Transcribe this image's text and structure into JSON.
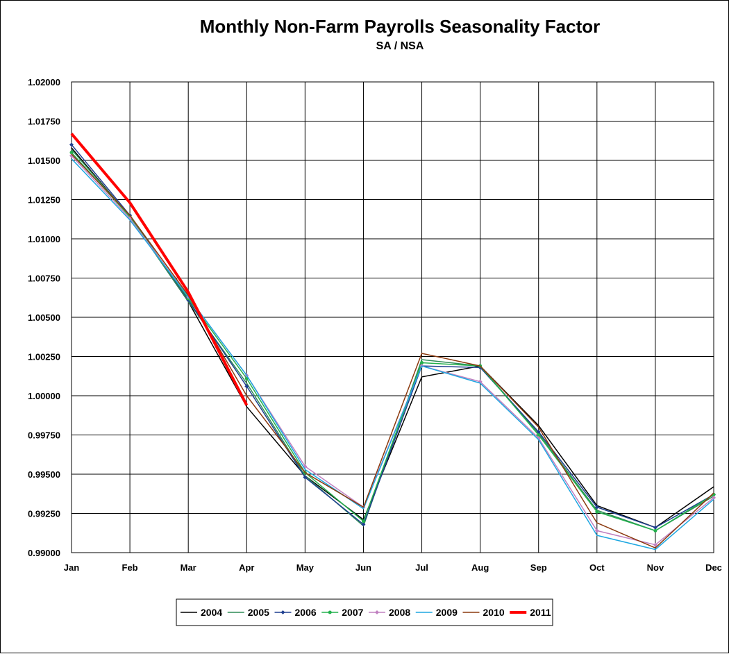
{
  "chart_data": {
    "type": "line",
    "title": "Monthly Non-Farm Payrolls Seasonality Factor",
    "subtitle": "SA / NSA",
    "categories": [
      "Jan",
      "Feb",
      "Mar",
      "Apr",
      "May",
      "Jun",
      "Jul",
      "Aug",
      "Sep",
      "Oct",
      "Nov",
      "Dec"
    ],
    "ylim": [
      0.99,
      1.02
    ],
    "yticks": [
      "1.02000",
      "1.01750",
      "1.01500",
      "1.01250",
      "1.01000",
      "1.00750",
      "1.00500",
      "1.00250",
      "1.00000",
      "0.99750",
      "0.99500",
      "0.99250",
      "0.99000"
    ],
    "grid": true,
    "legend_position": "bottom",
    "series": [
      {
        "name": "2004",
        "color": "#000000",
        "marker": "none",
        "width": 1.5,
        "values": [
          1.0158,
          1.0114,
          1.006,
          0.9993,
          0.9949,
          0.9921,
          1.0012,
          1.0019,
          0.9981,
          0.993,
          0.9916,
          0.9942
        ]
      },
      {
        "name": "2005",
        "color": "#2e8b57",
        "marker": "none",
        "width": 1.5,
        "values": [
          1.0157,
          1.0114,
          1.006,
          1.0008,
          0.9949,
          0.9917,
          1.0023,
          1.0019,
          0.9976,
          0.9927,
          0.9914,
          0.9936
        ]
      },
      {
        "name": "2006",
        "color": "#1f3f8f",
        "marker": "diamond",
        "width": 1.5,
        "values": [
          1.016,
          1.0115,
          1.0061,
          1.0006,
          0.9948,
          0.9918,
          1.0019,
          1.0018,
          0.9977,
          0.9929,
          0.9916,
          0.9937
        ]
      },
      {
        "name": "2007",
        "color": "#22b14c",
        "marker": "dot",
        "width": 1.5,
        "values": [
          1.0155,
          1.0114,
          1.0062,
          1.0011,
          0.9951,
          0.992,
          1.0021,
          1.0019,
          0.9975,
          0.9926,
          0.9914,
          0.9937
        ]
      },
      {
        "name": "2008",
        "color": "#c080c0",
        "marker": "diamond",
        "width": 1.5,
        "values": [
          1.0153,
          1.0113,
          1.0063,
          1.0013,
          0.9955,
          0.9929,
          1.0019,
          1.0009,
          0.9973,
          0.9914,
          0.9905,
          0.9935
        ]
      },
      {
        "name": "2009",
        "color": "#1ea7e1",
        "marker": "none",
        "width": 1.5,
        "values": [
          1.0151,
          1.0112,
          1.0063,
          1.0013,
          0.9953,
          0.9928,
          1.0019,
          1.0008,
          0.9972,
          0.9911,
          0.9902,
          0.9934
        ]
      },
      {
        "name": "2010",
        "color": "#8b3a0f",
        "marker": "none",
        "width": 1.5,
        "values": [
          1.0154,
          1.0115,
          1.0064,
          1.0,
          0.9951,
          0.9929,
          1.0027,
          1.0019,
          0.998,
          0.9919,
          0.9903,
          0.9938
        ]
      },
      {
        "name": "2011",
        "color": "#ff0000",
        "marker": "none",
        "width": 4,
        "values": [
          1.0167,
          1.0123,
          1.0066,
          0.9994,
          null,
          null,
          null,
          null,
          null,
          null,
          null,
          null
        ]
      }
    ]
  }
}
